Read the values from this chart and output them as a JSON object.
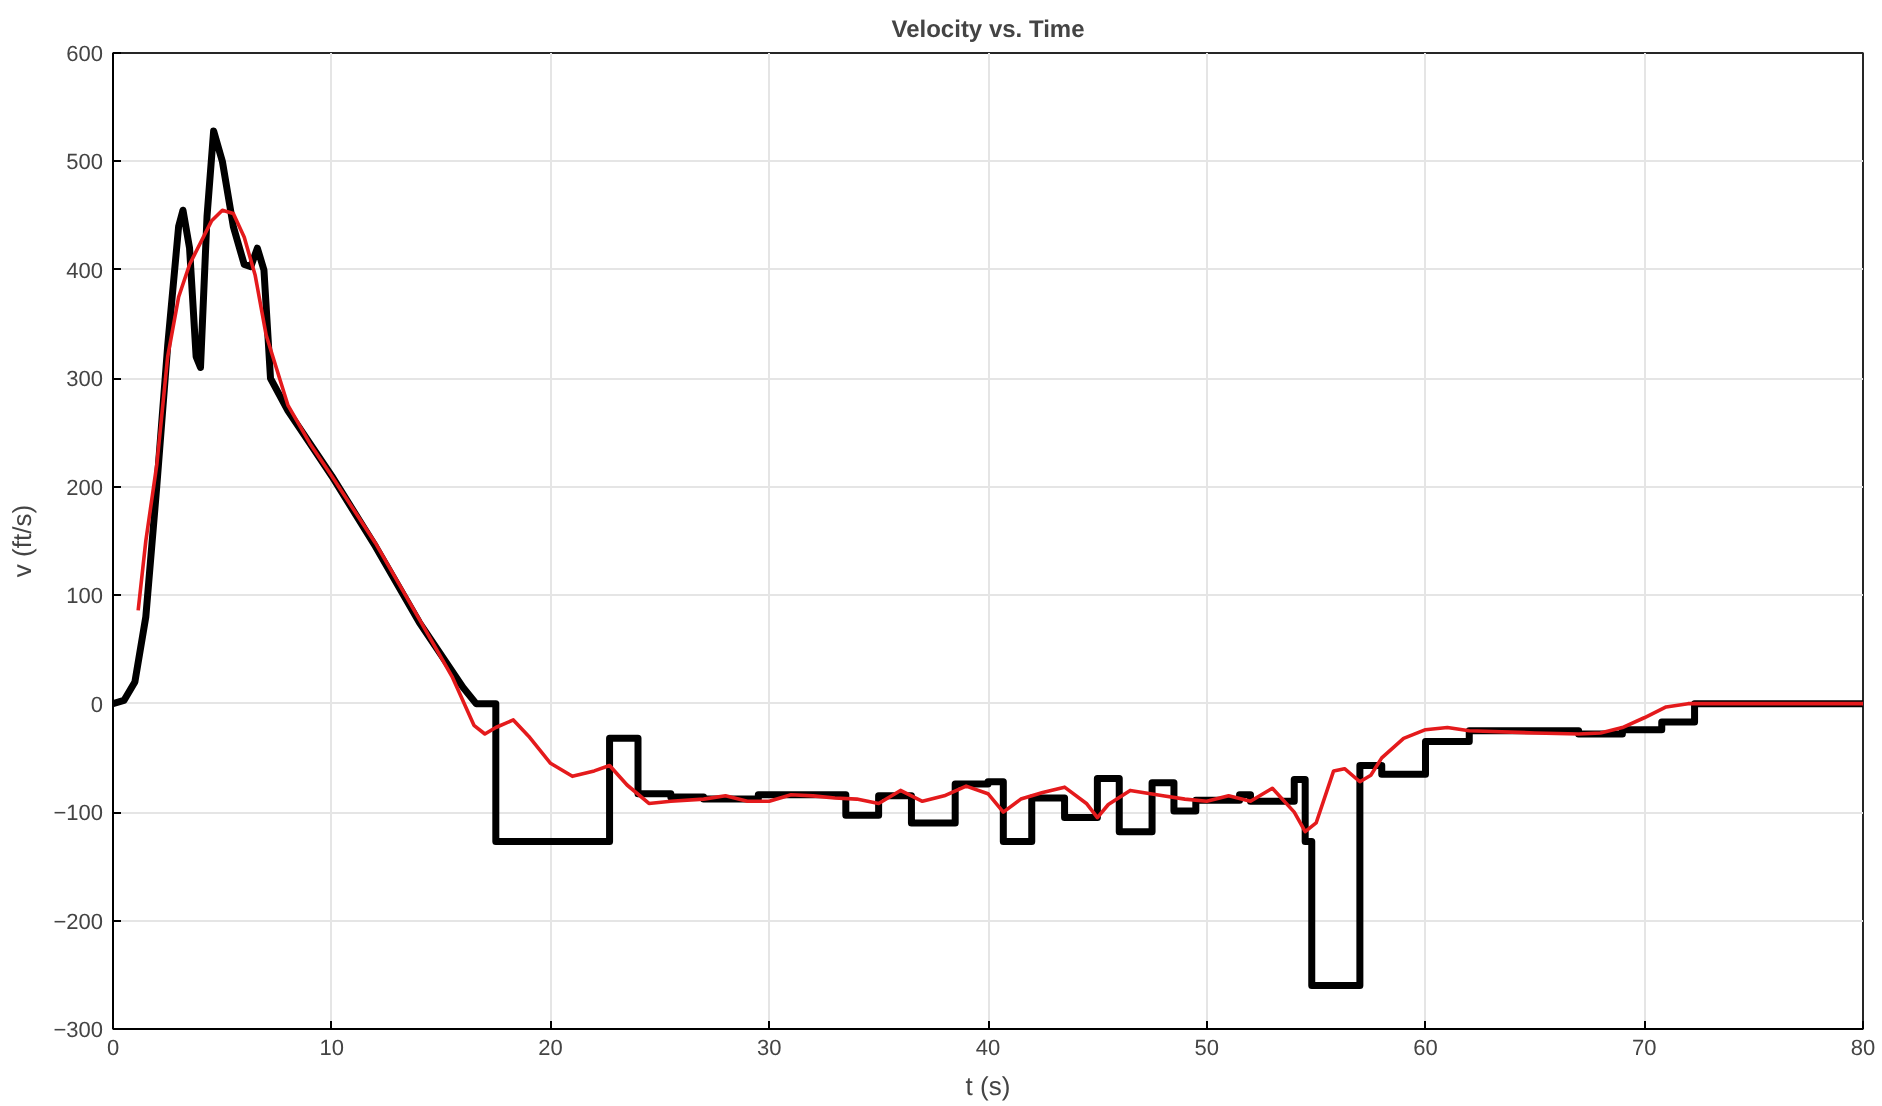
{
  "chart_data": {
    "type": "line",
    "title": "Velocity vs. Time",
    "xlabel": "t (s)",
    "ylabel": "v (ft/s)",
    "xlim": [
      0,
      80
    ],
    "ylim": [
      -300,
      600
    ],
    "xticks": [
      0,
      10,
      20,
      30,
      40,
      50,
      60,
      70,
      80
    ],
    "yticks": [
      -300,
      -200,
      -100,
      0,
      100,
      200,
      300,
      400,
      500,
      600
    ],
    "grid": true,
    "line_style": "solid",
    "marker": "none",
    "series": [
      {
        "color": "#000000",
        "x": [
          0,
          0.5,
          1,
          1.5,
          2,
          2.5,
          3,
          3.2,
          3.5,
          3.8,
          4,
          4.3,
          4.6,
          5,
          5.5,
          6,
          6.3,
          6.6,
          6.9,
          7.2,
          8,
          9,
          10,
          12,
          14,
          16,
          16.6,
          17.5,
          17.5,
          22.7,
          22.7,
          24,
          24,
          25.5,
          25.5,
          27,
          27,
          29.5,
          29.5,
          33.5,
          33.5,
          35,
          35,
          36.5,
          36.5,
          38.5,
          38.5,
          40,
          40,
          40.7,
          40.7,
          42,
          42,
          43.5,
          43.5,
          45,
          45,
          46,
          46,
          47.5,
          47.5,
          48.5,
          48.5,
          49.5,
          49.5,
          51.5,
          51.5,
          52,
          52,
          54,
          54,
          54.5,
          54.5,
          54.8,
          54.8,
          57,
          57,
          58,
          58,
          60,
          60,
          62,
          62,
          67,
          67,
          69,
          69,
          70.8,
          70.8,
          72.3,
          72.3,
          80
        ],
        "values": [
          0,
          3,
          20,
          80,
          200,
          330,
          440,
          455,
          420,
          320,
          310,
          450,
          528,
          500,
          440,
          405,
          403,
          420,
          400,
          300,
          270,
          240,
          210,
          145,
          75,
          15,
          0,
          0,
          -127,
          -127,
          -32,
          -32,
          -83,
          -83,
          -86,
          -86,
          -88,
          -88,
          -84,
          -84,
          -103,
          -103,
          -85,
          -85,
          -110,
          -110,
          -74,
          -74,
          -72,
          -72,
          -127,
          -127,
          -87,
          -87,
          -105,
          -105,
          -69,
          -69,
          -118,
          -118,
          -73,
          -73,
          -99,
          -99,
          -89,
          -89,
          -84,
          -84,
          -90,
          -90,
          -70,
          -70,
          -127,
          -127,
          -260,
          -260,
          -57,
          -57,
          -65,
          -65,
          -35,
          -35,
          -25,
          -25,
          -28,
          -28,
          -24,
          -24,
          -17,
          -17,
          0,
          0
        ]
      },
      {
        "color": "#e41a1c",
        "x": [
          1.15,
          1.5,
          2,
          2.5,
          3,
          3.5,
          4,
          4.5,
          5,
          5.5,
          6,
          6.5,
          7,
          8,
          9,
          10,
          12,
          14,
          15.5,
          16.5,
          17,
          17.5,
          18.3,
          19,
          20,
          21,
          22,
          22.7,
          23.5,
          24.5,
          25.5,
          27,
          28,
          29,
          30,
          31,
          32,
          33,
          34,
          35,
          36,
          37,
          38,
          39,
          40,
          40.7,
          41.5,
          42.5,
          43.5,
          44.5,
          45,
          45.5,
          46.5,
          48,
          49,
          50,
          51,
          52,
          53,
          54,
          54.5,
          55,
          55.8,
          56.3,
          57,
          57.5,
          58,
          59,
          60,
          61,
          62,
          65,
          67,
          68,
          69,
          70,
          71,
          72,
          80
        ],
        "values": [
          86,
          150,
          220,
          320,
          375,
          405,
          425,
          445,
          455,
          452,
          430,
          395,
          340,
          275,
          240,
          210,
          148,
          78,
          25,
          -20,
          -28,
          -22,
          -15,
          -30,
          -55,
          -67,
          -62,
          -57,
          -75,
          -92,
          -90,
          -88,
          -85,
          -90,
          -90,
          -84,
          -85,
          -87,
          -88,
          -92,
          -80,
          -90,
          -85,
          -76,
          -83,
          -100,
          -88,
          -82,
          -77,
          -92,
          -105,
          -93,
          -80,
          -85,
          -88,
          -90,
          -85,
          -90,
          -78,
          -100,
          -118,
          -110,
          -62,
          -60,
          -72,
          -66,
          -50,
          -32,
          -24,
          -22,
          -25,
          -27,
          -28,
          -27,
          -22,
          -13,
          -3,
          0,
          0
        ]
      }
    ]
  }
}
